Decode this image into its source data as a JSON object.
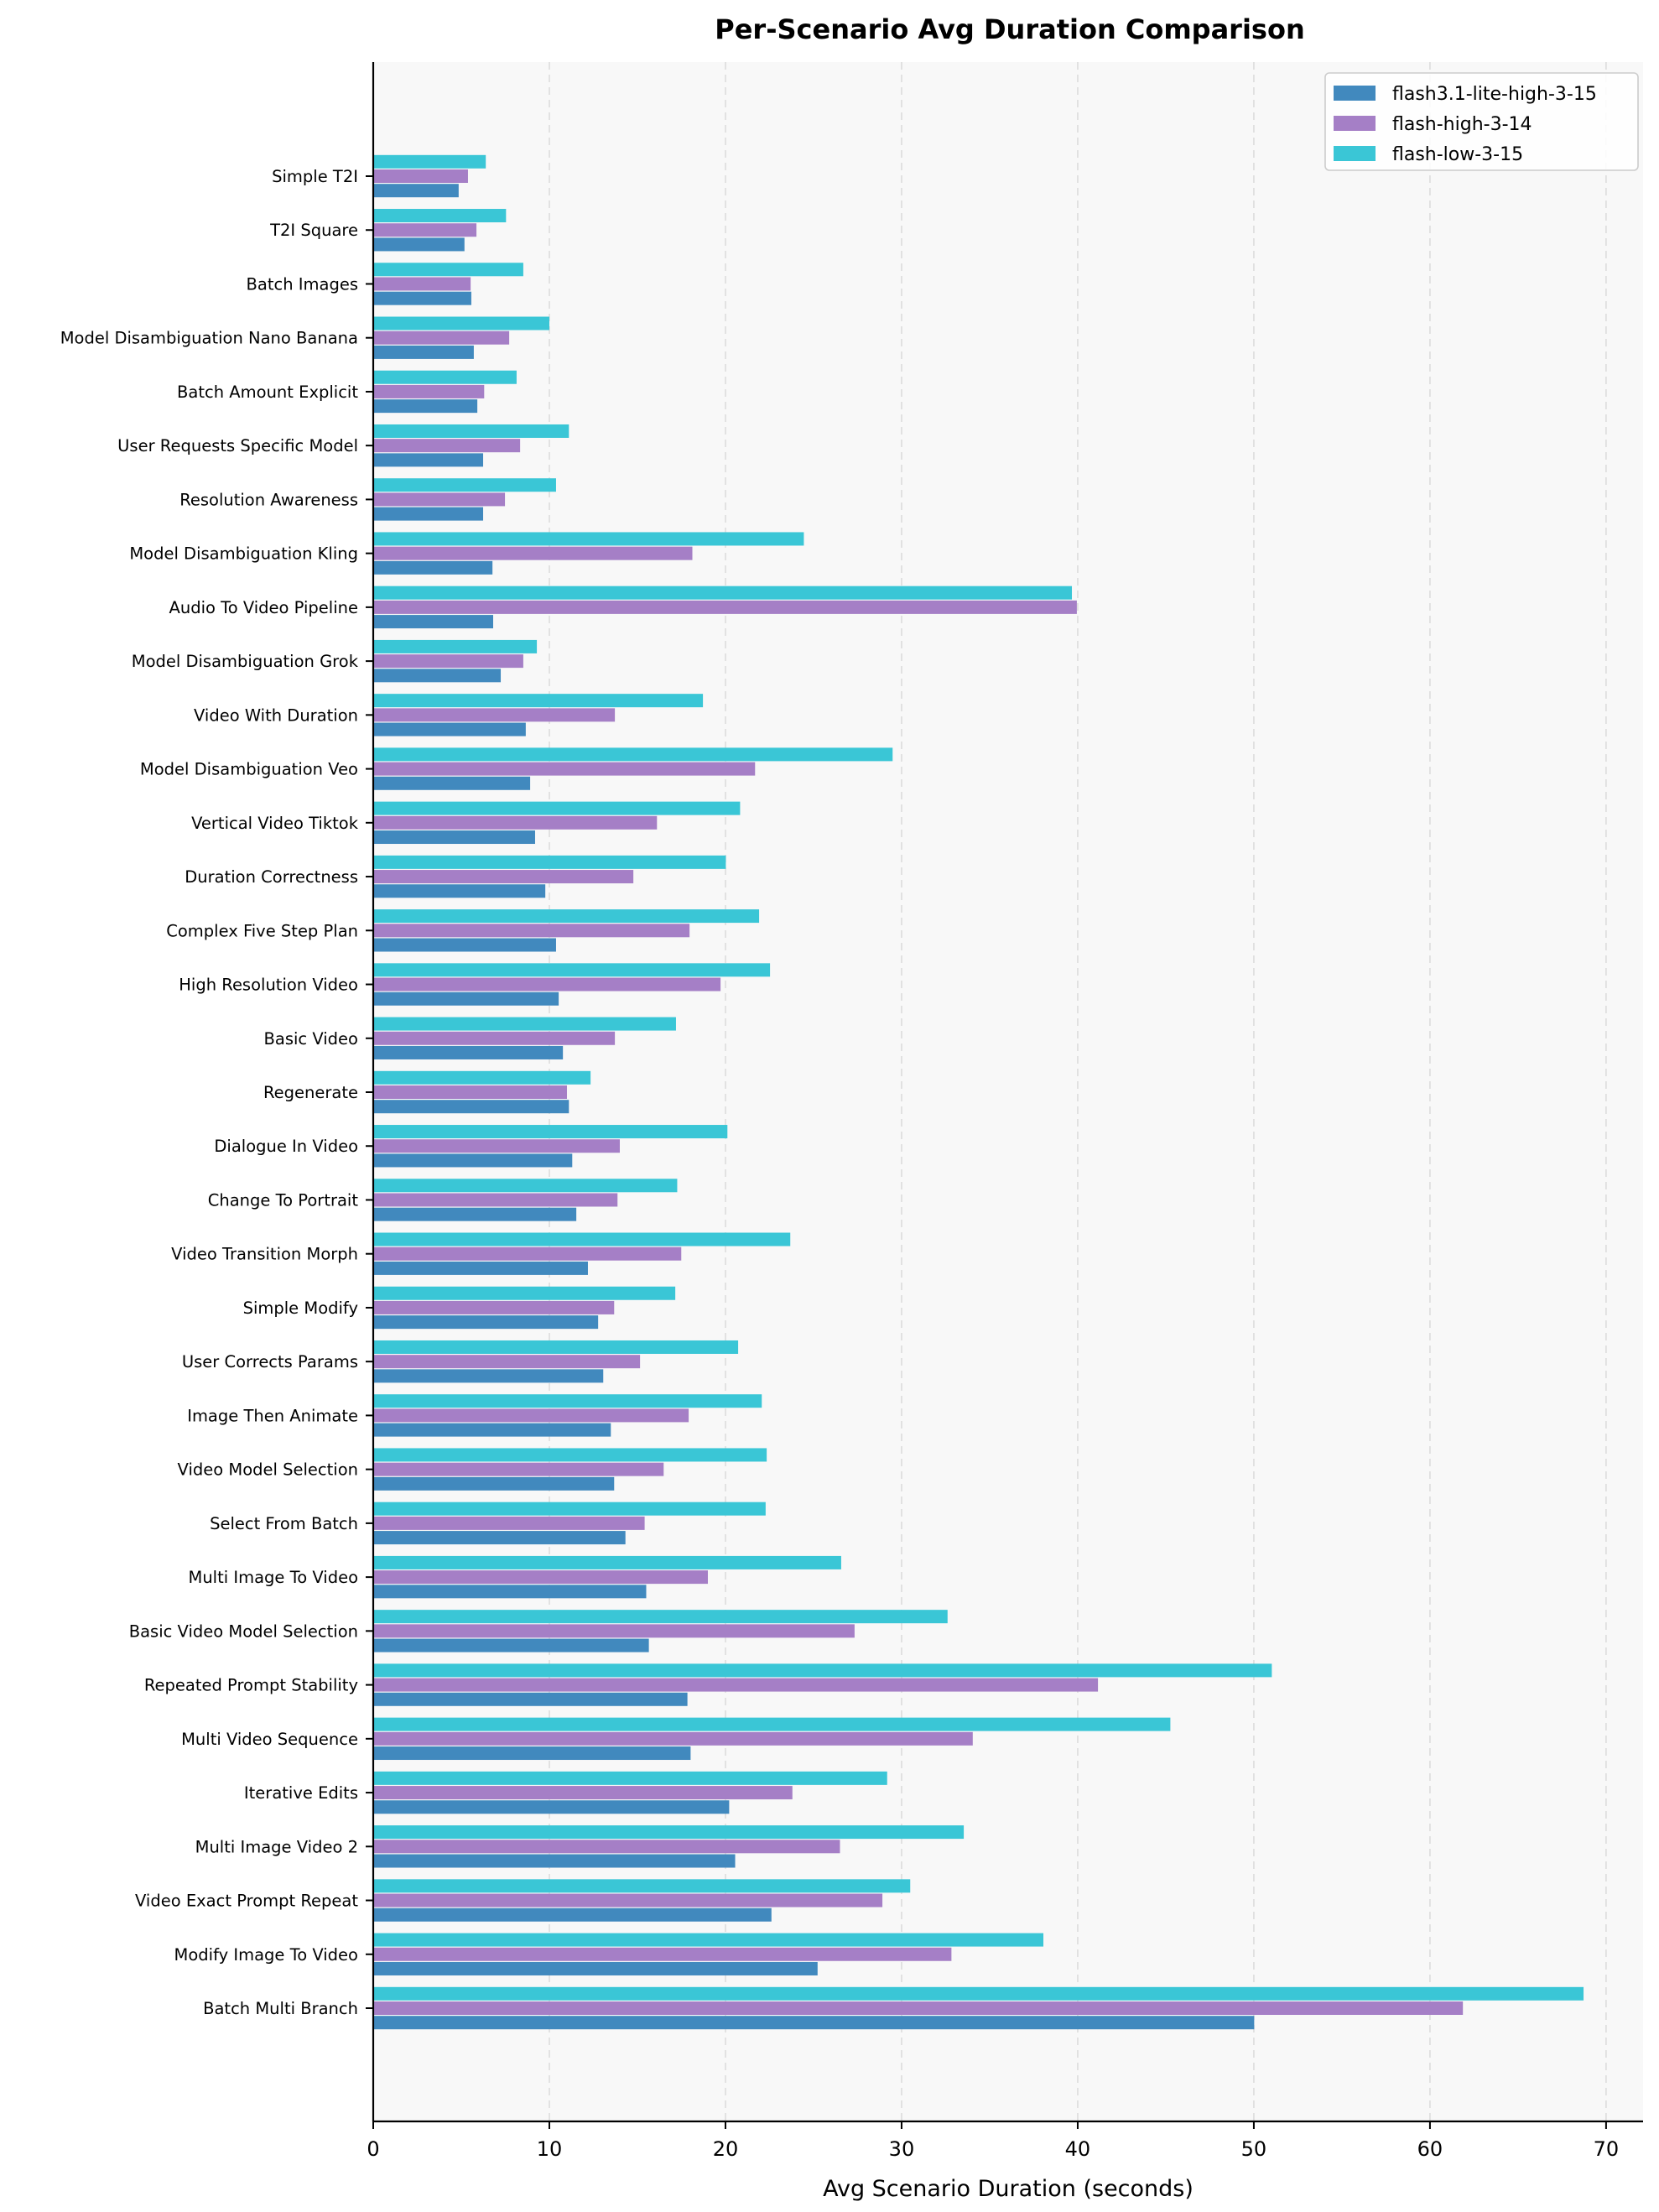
{
  "chart_data": {
    "type": "bar",
    "orientation": "horizontal",
    "title": "Per-Scenario Avg Duration Comparison",
    "xlabel": "Avg Scenario Duration (seconds)",
    "ylabel": "",
    "xlim": [
      0,
      72.1
    ],
    "xticks": [
      0,
      10,
      20,
      30,
      40,
      50,
      60,
      70
    ],
    "grid": "x, dashed",
    "legend_position": "top-right",
    "categories": [
      "Simple T2I",
      "T2I Square",
      "Batch Images",
      "Model Disambiguation Nano Banana",
      "Batch Amount Explicit",
      "User Requests Specific Model",
      "Resolution Awareness",
      "Model Disambiguation Kling",
      "Audio To Video Pipeline",
      "Model Disambiguation Grok",
      "Video With Duration",
      "Model Disambiguation Veo",
      "Vertical Video Tiktok",
      "Duration Correctness",
      "Complex Five Step Plan",
      "High Resolution Video",
      "Basic Video",
      "Regenerate",
      "Dialogue In Video",
      "Change To Portrait",
      "Video Transition Morph",
      "Simple Modify",
      "User Corrects Params",
      "Image Then Animate",
      "Video Model Selection",
      "Select From Batch",
      "Multi Image To Video",
      "Basic Video Model Selection",
      "Repeated Prompt Stability",
      "Multi Video Sequence",
      "Iterative Edits",
      "Multi Image Video 2",
      "Video Exact Prompt Repeat",
      "Modify Image To Video",
      "Batch Multi Branch"
    ],
    "series": [
      {
        "name": "flash3.1-lite-high-3-15",
        "color": "#4189be",
        "values": [
          4.85,
          5.18,
          5.57,
          5.71,
          5.91,
          6.24,
          6.24,
          6.77,
          6.81,
          7.24,
          8.66,
          8.91,
          9.19,
          9.77,
          10.38,
          10.53,
          10.77,
          11.11,
          11.3,
          11.53,
          12.19,
          12.77,
          13.06,
          13.49,
          13.68,
          14.32,
          15.5,
          15.65,
          17.84,
          18.02,
          20.21,
          20.55,
          22.61,
          25.23,
          50.02
        ]
      },
      {
        "name": "flash-high-3-14",
        "color": "#a57fc6",
        "values": [
          5.38,
          5.86,
          5.53,
          7.72,
          6.3,
          8.34,
          7.48,
          18.12,
          39.95,
          8.52,
          13.72,
          21.68,
          16.11,
          14.77,
          17.96,
          19.72,
          13.72,
          11.0,
          14.0,
          13.87,
          17.49,
          13.68,
          15.15,
          17.91,
          16.49,
          15.41,
          19.0,
          27.33,
          41.15,
          34.04,
          23.8,
          26.5,
          28.91,
          32.83,
          61.87
        ]
      },
      {
        "name": "flash-low-3-15",
        "color": "#3ac6d6",
        "values": [
          6.39,
          7.54,
          8.52,
          10.0,
          8.14,
          11.11,
          10.38,
          24.45,
          39.67,
          9.29,
          18.72,
          29.49,
          20.83,
          20.02,
          21.91,
          22.53,
          17.19,
          12.34,
          20.11,
          17.26,
          23.68,
          17.15,
          20.72,
          22.06,
          22.34,
          22.28,
          26.57,
          32.61,
          51.02,
          45.26,
          29.18,
          33.53,
          30.49,
          38.05,
          68.72
        ]
      }
    ]
  },
  "colors": {
    "plot_background": "#f8f8f8",
    "grid": "#dcdcdc",
    "axis": "#000000"
  }
}
